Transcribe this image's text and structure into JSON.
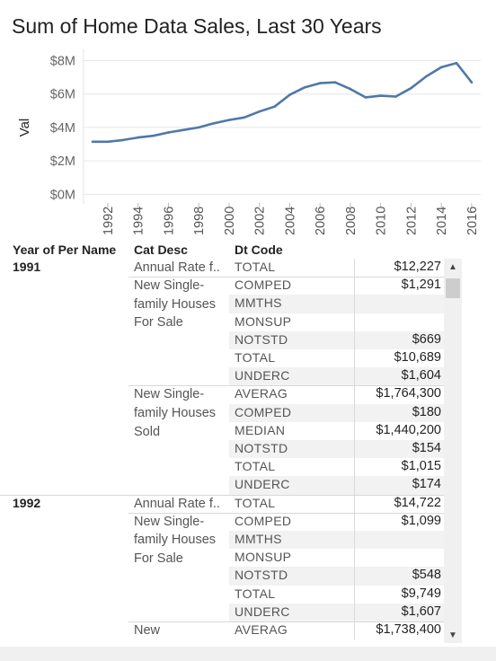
{
  "chart_data": {
    "type": "line",
    "title": "Sum of Home Data Sales, Last 30 Years",
    "ylabel": "Val",
    "xlabel": "",
    "x": [
      1991,
      1992,
      1993,
      1994,
      1995,
      1996,
      1997,
      1998,
      1999,
      2000,
      2001,
      2002,
      2003,
      2004,
      2005,
      2006,
      2007,
      2008,
      2009,
      2010,
      2011,
      2012,
      2013,
      2014,
      2015,
      2016
    ],
    "values": [
      3.15,
      3.15,
      3.25,
      3.4,
      3.5,
      3.7,
      3.85,
      4.0,
      4.25,
      4.45,
      4.6,
      4.95,
      5.25,
      5.95,
      6.4,
      6.65,
      6.7,
      6.3,
      5.8,
      5.9,
      5.85,
      6.35,
      7.05,
      7.6,
      7.85,
      6.7
    ],
    "xticks": [
      1992,
      1994,
      1996,
      1998,
      2000,
      2002,
      2004,
      2006,
      2008,
      2010,
      2012,
      2014,
      2016
    ],
    "yticks": [
      0,
      2,
      4,
      6,
      8
    ],
    "ytick_labels": [
      "$0M",
      "$2M",
      "$4M",
      "$6M",
      "$8M"
    ],
    "ylim": [
      -0.3,
      8.4
    ],
    "xlim": [
      1990.4,
      2016.6
    ],
    "grid": "horizontal",
    "line_color": "#4e79a7"
  },
  "table": {
    "headers": {
      "year": "Year of Per Name",
      "cat": "Cat Desc",
      "code": "Dt Code"
    },
    "groups": [
      {
        "year": "1991",
        "cats": [
          {
            "label": "Annual Rate f..",
            "rows": [
              {
                "code": "TOTAL",
                "value": "$12,227"
              }
            ]
          },
          {
            "label": "New Single-family Houses For Sale",
            "rows": [
              {
                "code": "COMPED",
                "value": "$1,291"
              },
              {
                "code": "MMTHS",
                "value": ""
              },
              {
                "code": "MONSUP",
                "value": ""
              },
              {
                "code": "NOTSTD",
                "value": "$669"
              },
              {
                "code": "TOTAL",
                "value": "$10,689"
              },
              {
                "code": "UNDERC",
                "value": "$1,604"
              }
            ]
          },
          {
            "label": "New Single-family Houses Sold",
            "rows": [
              {
                "code": "AVERAG",
                "value": "$1,764,300"
              },
              {
                "code": "COMPED",
                "value": "$180"
              },
              {
                "code": "MEDIAN",
                "value": "$1,440,200"
              },
              {
                "code": "NOTSTD",
                "value": "$154"
              },
              {
                "code": "TOTAL",
                "value": "$1,015"
              },
              {
                "code": "UNDERC",
                "value": "$174"
              }
            ]
          }
        ]
      },
      {
        "year": "1992",
        "cats": [
          {
            "label": "Annual Rate f..",
            "rows": [
              {
                "code": "TOTAL",
                "value": "$14,722"
              }
            ]
          },
          {
            "label": "New Single-family Houses For Sale",
            "rows": [
              {
                "code": "COMPED",
                "value": "$1,099"
              },
              {
                "code": "MMTHS",
                "value": ""
              },
              {
                "code": "MONSUP",
                "value": ""
              },
              {
                "code": "NOTSTD",
                "value": "$548"
              },
              {
                "code": "TOTAL",
                "value": "$9,749"
              },
              {
                "code": "UNDERC",
                "value": "$1,607"
              }
            ]
          },
          {
            "label": "New",
            "rows": [
              {
                "code": "AVERAG",
                "value": "$1,738,400"
              }
            ]
          }
        ]
      }
    ]
  },
  "scrollbar": {
    "up_icon": "▲",
    "down_icon": "▼"
  }
}
